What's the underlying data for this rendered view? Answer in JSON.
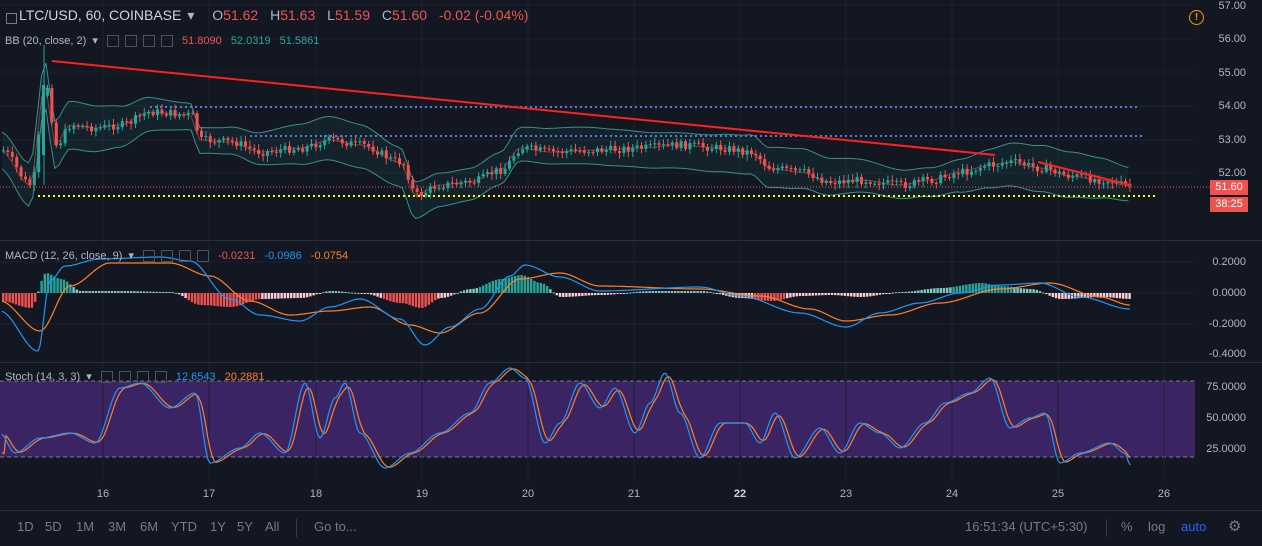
{
  "header": {
    "symbol": "LTC/USD, 60, COINBASE",
    "open_label": "O",
    "open": "51.62",
    "high_label": "H",
    "high": "51.63",
    "low_label": "L",
    "low": "51.59",
    "close_label": "C",
    "close": "51.60",
    "change": "-0.02 (-0.04%)"
  },
  "bb": {
    "name": "BB (20, close, 2)",
    "v1": "51.8090",
    "v2": "52.0319",
    "v3": "51.5861"
  },
  "macd": {
    "name": "MACD (12, 26, close, 9)",
    "v1": "-0.0231",
    "v2": "-0.0986",
    "v3": "-0.0754"
  },
  "stoch": {
    "name": "Stoch (14, 3, 3)",
    "v1": "12.6543",
    "v2": "20.2881"
  },
  "price_axis": [
    "57.00",
    "56.00",
    "55.00",
    "54.00",
    "53.00",
    "52.00"
  ],
  "price_tag": "51.60",
  "countdown_tag": "38:25",
  "macd_axis": [
    "0.2000",
    "0.0000",
    "-0.2000",
    "-0.4000"
  ],
  "stoch_axis": [
    "75.0000",
    "50.0000",
    "25.0000"
  ],
  "x_labels": [
    "16",
    "17",
    "18",
    "19",
    "20",
    "21",
    "22",
    "23",
    "24",
    "25",
    "26"
  ],
  "bottom": {
    "ranges": [
      "1D",
      "5D",
      "1M",
      "3M",
      "6M",
      "YTD",
      "1Y",
      "5Y",
      "All"
    ],
    "goto": "Go to...",
    "time": "16:51:34 (UTC+5:30)",
    "percent": "%",
    "log": "log",
    "auto": "auto"
  },
  "colors": {
    "up": "#26a69a",
    "down": "#ef5350",
    "trend": "#ff2020",
    "support": "#ffff00",
    "resistance": "#5b7cd6",
    "bb": "#3a8f8a",
    "macd": "#2196f3",
    "signal": "#ff7f27",
    "stoch_k": "#2196f3",
    "stoch_d": "#ff7f27",
    "stoch_band": "#4a2a7a"
  },
  "icons": [
    "collapse-icon",
    "warning-icon",
    "dropdown-icon",
    "settings-icon"
  ]
}
